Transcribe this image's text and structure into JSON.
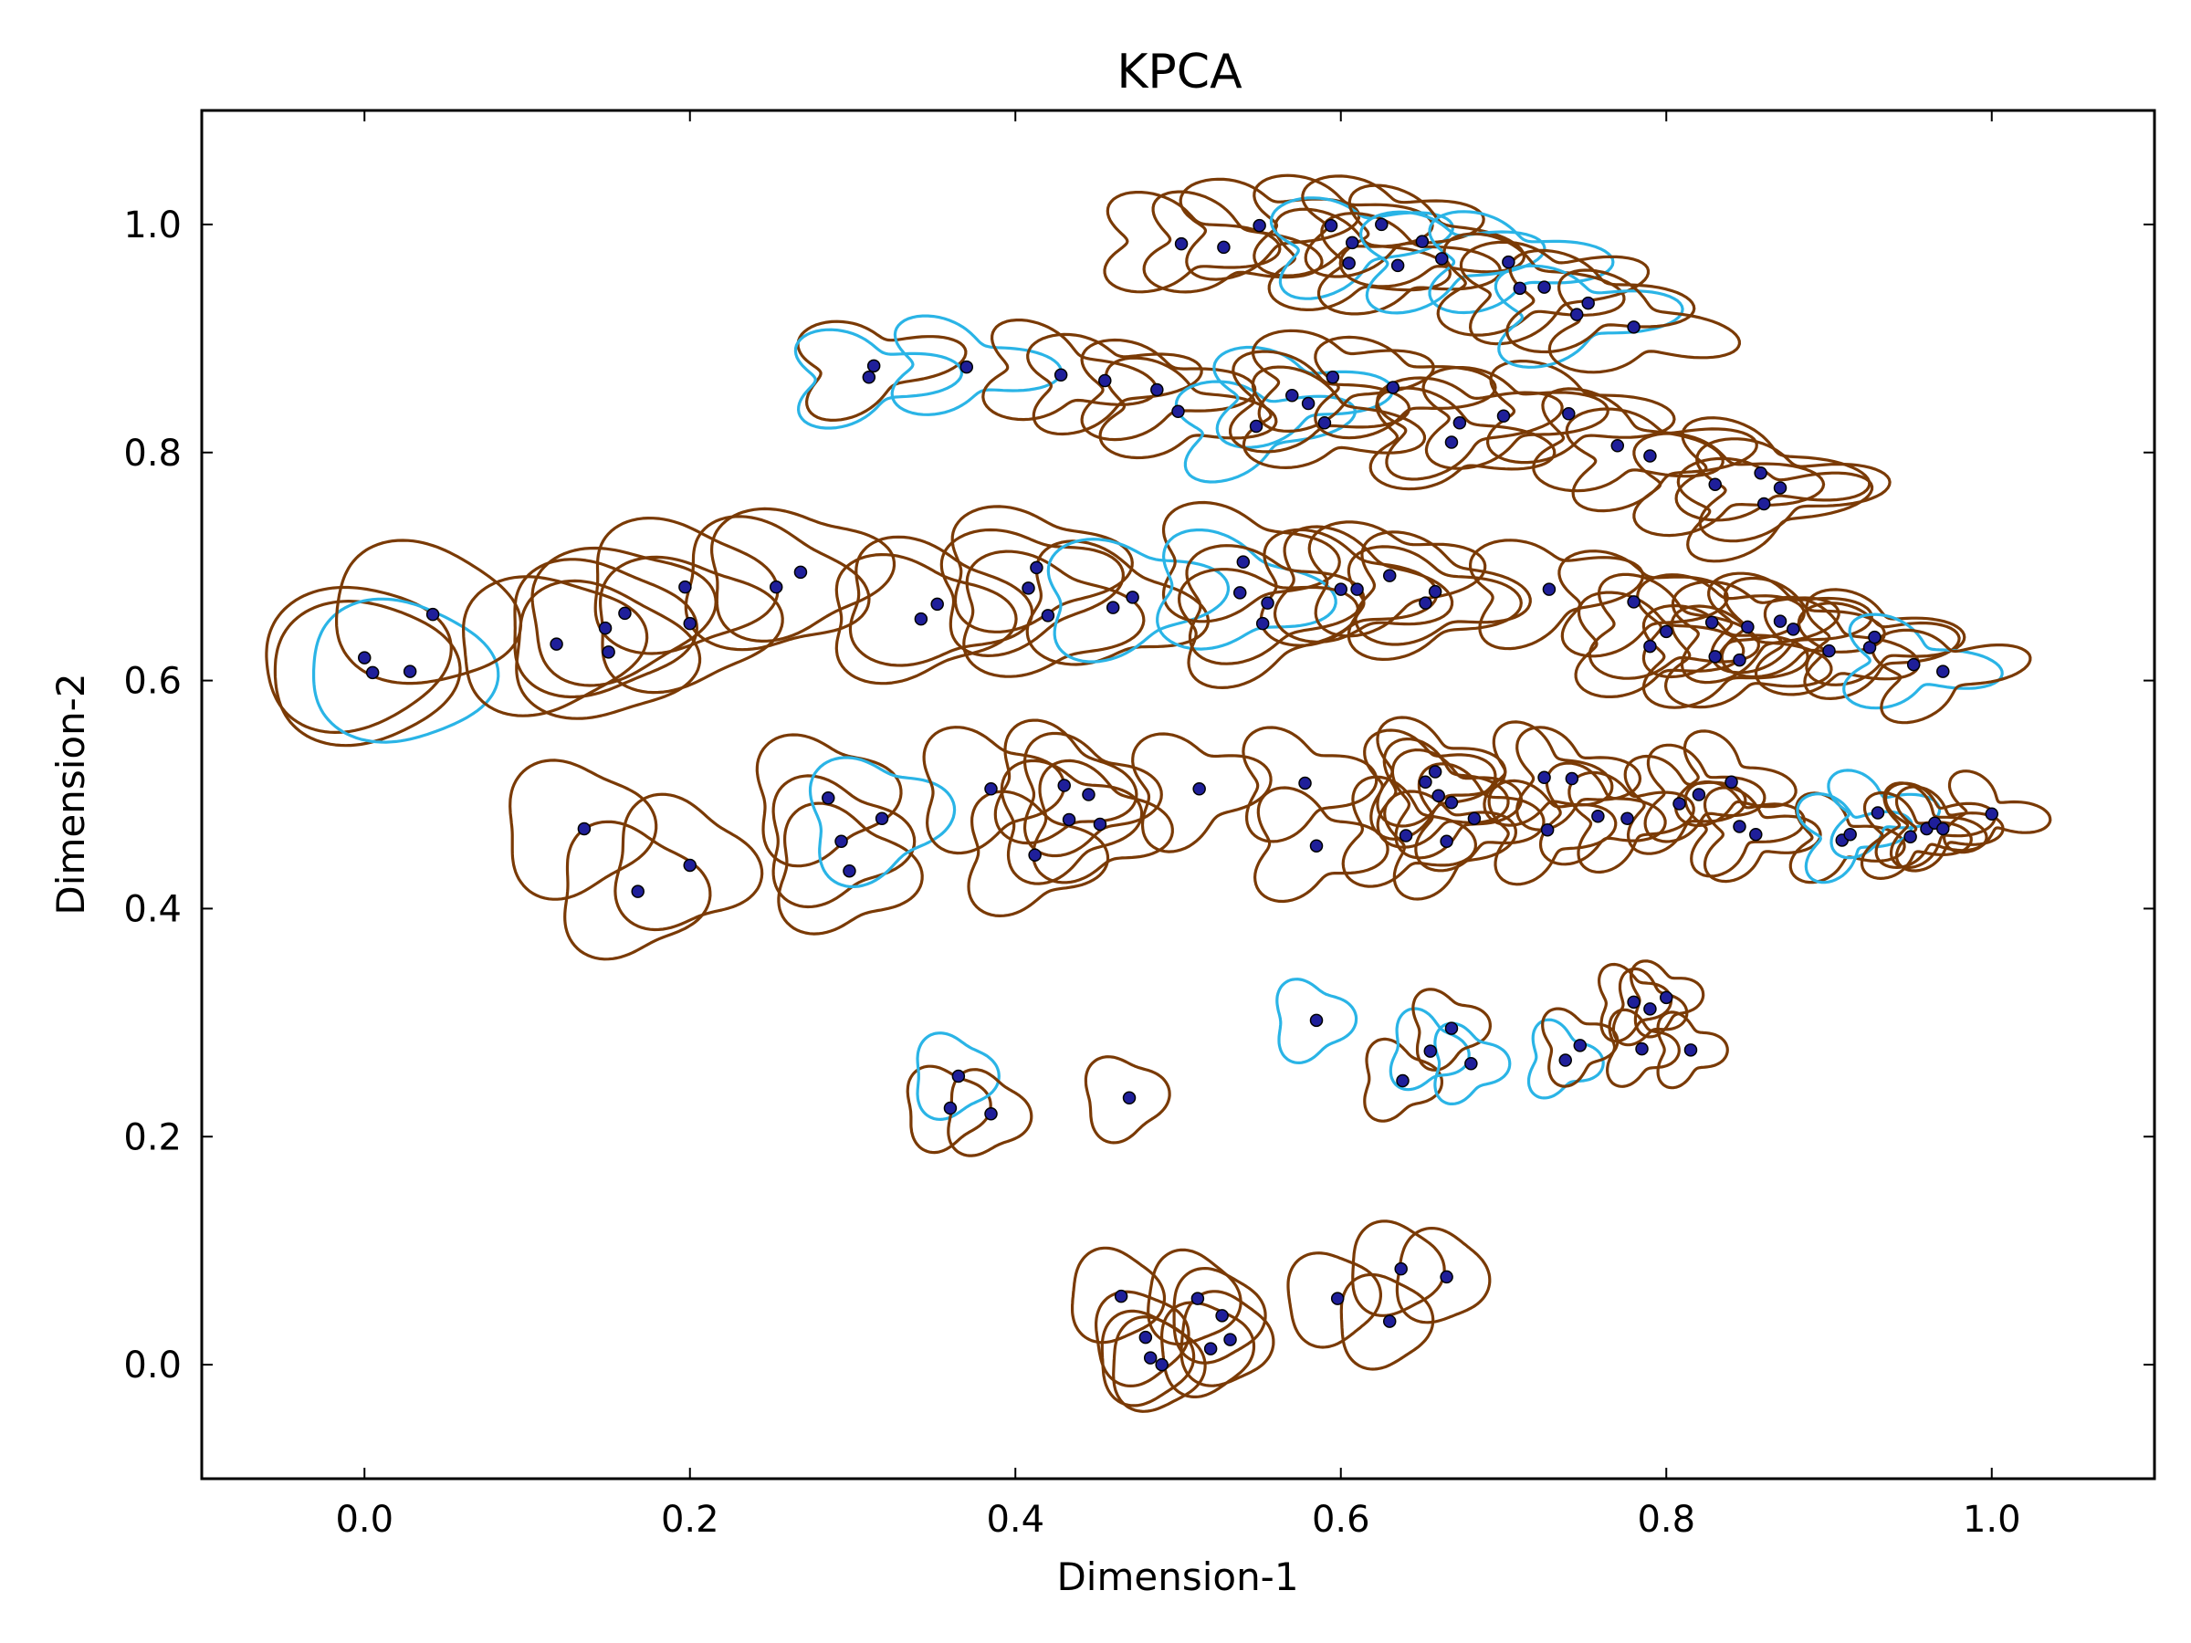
{
  "chart_data": {
    "type": "scatter",
    "title": "KPCA",
    "xlabel": "Dimension-1",
    "ylabel": "Dimension-2",
    "xlim": [
      -0.1,
      1.1
    ],
    "ylim": [
      -0.1,
      1.1
    ],
    "xticks": [
      "0.0",
      "0.2",
      "0.4",
      "0.6",
      "0.8",
      "1.0"
    ],
    "yticks": [
      "0.0",
      "0.2",
      "0.4",
      "0.6",
      "0.8",
      "1.0"
    ],
    "grid": false,
    "legend": "none",
    "colors": {
      "marker_fill": "#1f1f9a",
      "marker_edge": "#000000",
      "glyph_default": "#7a3a05",
      "glyph_highlight": "#2ab4e6"
    },
    "series": [
      {
        "points": [
          [
            0.0,
            0.62
          ],
          [
            0.005,
            0.607
          ],
          [
            0.028,
            0.608
          ],
          [
            0.042,
            0.658
          ],
          [
            0.118,
            0.632
          ],
          [
            0.148,
            0.646
          ],
          [
            0.15,
            0.625
          ],
          [
            0.16,
            0.659
          ],
          [
            0.2,
            0.65
          ],
          [
            0.197,
            0.682
          ],
          [
            0.253,
            0.682
          ],
          [
            0.268,
            0.695
          ],
          [
            0.342,
            0.654
          ],
          [
            0.352,
            0.667
          ],
          [
            0.408,
            0.681
          ],
          [
            0.413,
            0.699
          ],
          [
            0.42,
            0.657
          ],
          [
            0.46,
            0.664
          ],
          [
            0.472,
            0.673
          ],
          [
            0.54,
            0.704
          ],
          [
            0.538,
            0.677
          ],
          [
            0.552,
            0.65
          ],
          [
            0.555,
            0.668
          ],
          [
            0.6,
            0.68
          ],
          [
            0.61,
            0.68
          ],
          [
            0.63,
            0.692
          ],
          [
            0.652,
            0.668
          ],
          [
            0.658,
            0.678
          ],
          [
            0.728,
            0.68
          ],
          [
            0.78,
            0.669
          ],
          [
            0.79,
            0.63
          ],
          [
            0.8,
            0.643
          ],
          [
            0.828,
            0.651
          ],
          [
            0.83,
            0.621
          ],
          [
            0.845,
            0.618
          ],
          [
            0.85,
            0.647
          ],
          [
            0.87,
            0.652
          ],
          [
            0.878,
            0.645
          ],
          [
            0.9,
            0.626
          ],
          [
            0.925,
            0.629
          ],
          [
            0.928,
            0.638
          ],
          [
            0.952,
            0.614
          ],
          [
            0.97,
            0.608
          ],
          [
            0.135,
            0.47
          ],
          [
            0.168,
            0.415
          ],
          [
            0.2,
            0.438
          ],
          [
            0.285,
            0.497
          ],
          [
            0.293,
            0.459
          ],
          [
            0.298,
            0.433
          ],
          [
            0.318,
            0.479
          ],
          [
            0.385,
            0.505
          ],
          [
            0.412,
            0.447
          ],
          [
            0.43,
            0.508
          ],
          [
            0.433,
            0.478
          ],
          [
            0.445,
            0.5
          ],
          [
            0.452,
            0.474
          ],
          [
            0.513,
            0.505
          ],
          [
            0.578,
            0.51
          ],
          [
            0.585,
            0.455
          ],
          [
            0.64,
            0.464
          ],
          [
            0.652,
            0.511
          ],
          [
            0.658,
            0.52
          ],
          [
            0.66,
            0.499
          ],
          [
            0.665,
            0.459
          ],
          [
            0.668,
            0.493
          ],
          [
            0.682,
            0.479
          ],
          [
            0.725,
            0.515
          ],
          [
            0.727,
            0.469
          ],
          [
            0.742,
            0.514
          ],
          [
            0.758,
            0.481
          ],
          [
            0.776,
            0.479
          ],
          [
            0.808,
            0.492
          ],
          [
            0.82,
            0.5
          ],
          [
            0.84,
            0.511
          ],
          [
            0.845,
            0.472
          ],
          [
            0.855,
            0.465
          ],
          [
            0.908,
            0.46
          ],
          [
            0.913,
            0.465
          ],
          [
            0.93,
            0.484
          ],
          [
            0.95,
            0.463
          ],
          [
            0.96,
            0.47
          ],
          [
            0.965,
            0.475
          ],
          [
            0.97,
            0.47
          ],
          [
            1.0,
            0.483
          ],
          [
            0.313,
            0.876
          ],
          [
            0.31,
            0.866
          ],
          [
            0.37,
            0.875
          ],
          [
            0.428,
            0.868
          ],
          [
            0.455,
            0.863
          ],
          [
            0.487,
            0.855
          ],
          [
            0.5,
            0.836
          ],
          [
            0.548,
            0.823
          ],
          [
            0.57,
            0.85
          ],
          [
            0.58,
            0.843
          ],
          [
            0.59,
            0.826
          ],
          [
            0.595,
            0.866
          ],
          [
            0.632,
            0.857
          ],
          [
            0.668,
            0.809
          ],
          [
            0.673,
            0.826
          ],
          [
            0.7,
            0.832
          ],
          [
            0.74,
            0.834
          ],
          [
            0.77,
            0.806
          ],
          [
            0.79,
            0.797
          ],
          [
            0.83,
            0.772
          ],
          [
            0.858,
            0.782
          ],
          [
            0.86,
            0.755
          ],
          [
            0.87,
            0.769
          ],
          [
            0.502,
            0.983
          ],
          [
            0.528,
            0.98
          ],
          [
            0.55,
            0.999
          ],
          [
            0.594,
            0.999
          ],
          [
            0.605,
            0.966
          ],
          [
            0.607,
            0.984
          ],
          [
            0.625,
            1.0
          ],
          [
            0.635,
            0.964
          ],
          [
            0.65,
            0.985
          ],
          [
            0.662,
            0.97
          ],
          [
            0.703,
            0.967
          ],
          [
            0.71,
            0.944
          ],
          [
            0.725,
            0.945
          ],
          [
            0.745,
            0.921
          ],
          [
            0.752,
            0.931
          ],
          [
            0.78,
            0.91
          ],
          [
            0.36,
            0.225
          ],
          [
            0.365,
            0.253
          ],
          [
            0.385,
            0.22
          ],
          [
            0.47,
            0.234
          ],
          [
            0.585,
            0.302
          ],
          [
            0.638,
            0.249
          ],
          [
            0.655,
            0.275
          ],
          [
            0.668,
            0.295
          ],
          [
            0.68,
            0.264
          ],
          [
            0.738,
            0.267
          ],
          [
            0.747,
            0.28
          ],
          [
            0.78,
            0.318
          ],
          [
            0.785,
            0.277
          ],
          [
            0.79,
            0.312
          ],
          [
            0.8,
            0.322
          ],
          [
            0.815,
            0.276
          ],
          [
            0.465,
            0.06
          ],
          [
            0.48,
            0.024
          ],
          [
            0.483,
            0.006
          ],
          [
            0.49,
            0.0
          ],
          [
            0.512,
            0.058
          ],
          [
            0.52,
            0.014
          ],
          [
            0.527,
            0.043
          ],
          [
            0.532,
            0.022
          ],
          [
            0.598,
            0.058
          ],
          [
            0.63,
            0.038
          ],
          [
            0.637,
            0.084
          ],
          [
            0.665,
            0.077
          ]
        ],
        "highlight_indices": [
          2,
          18,
          20,
          41,
          49,
          77,
          78,
          85,
          86,
          91,
          92,
          112,
          116,
          117,
          120,
          124,
          127,
          129,
          131,
          132
        ]
      }
    ]
  }
}
